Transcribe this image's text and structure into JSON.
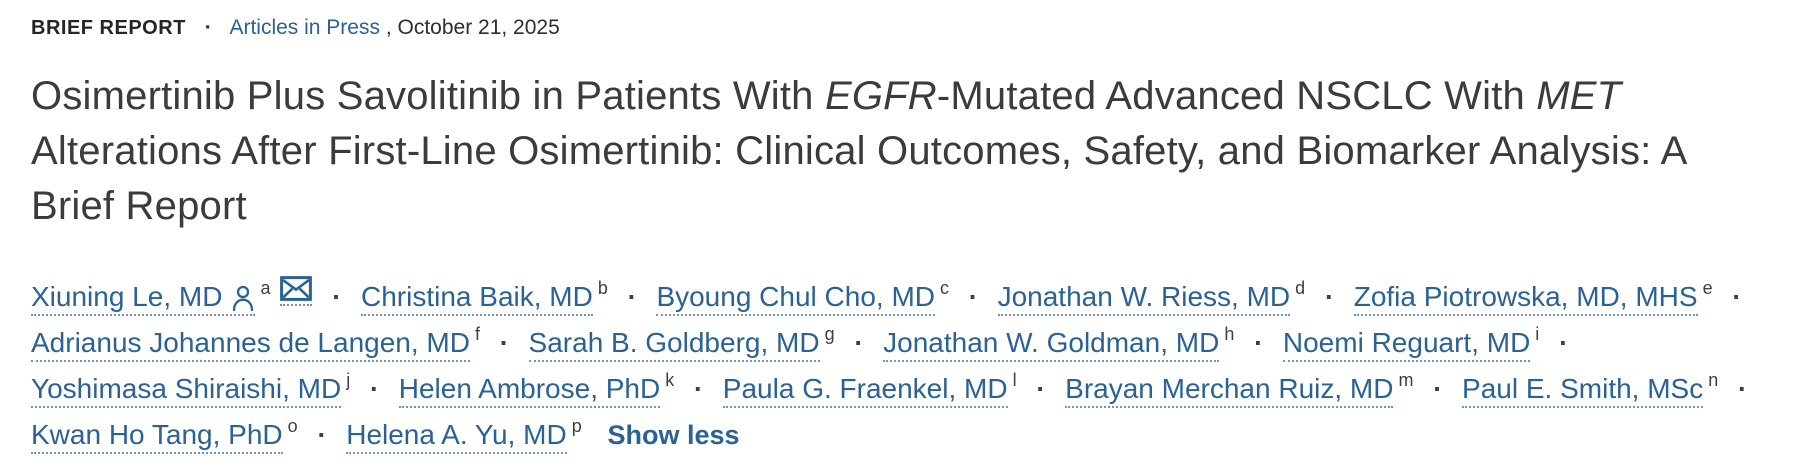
{
  "eyebrow": {
    "category": "BRIEF REPORT",
    "separator": "·",
    "link": "Articles in Press",
    "date_suffix": ", October 21, 2025"
  },
  "title": {
    "segments": [
      {
        "text": "Osimertinib Plus Savolitinib in Patients With ",
        "italic": false
      },
      {
        "text": "EGFR",
        "italic": true
      },
      {
        "text": "-Mutated Advanced NSCLC With ",
        "italic": false
      },
      {
        "text": "MET",
        "italic": true
      },
      {
        "text": " Alterations After First-Line Osimertinib: Clinical Outcomes, Safety, and Biomarker Analysis: A Brief Report",
        "italic": false
      }
    ]
  },
  "authors": {
    "separator": "·",
    "show_less_label": "Show less",
    "list": [
      {
        "name": "Xiuning Le, MD",
        "sup": "a",
        "person_icon": true,
        "email_icon": true
      },
      {
        "name": "Christina Baik, MD",
        "sup": "b"
      },
      {
        "name": "Byoung Chul Cho, MD",
        "sup": "c"
      },
      {
        "name": "Jonathan W. Riess, MD",
        "sup": "d"
      },
      {
        "name": "Zofia Piotrowska, MD, MHS",
        "sup": "e"
      },
      {
        "name": "Adrianus Johannes de Langen, MD",
        "sup": "f"
      },
      {
        "name": "Sarah B. Goldberg, MD",
        "sup": "g"
      },
      {
        "name": "Jonathan W. Goldman, MD",
        "sup": "h"
      },
      {
        "name": "Noemi Reguart, MD",
        "sup": "i"
      },
      {
        "name": "Yoshimasa Shiraishi, MD",
        "sup": "j"
      },
      {
        "name": "Helen Ambrose, PhD",
        "sup": "k"
      },
      {
        "name": "Paula G. Fraenkel, MD",
        "sup": "l"
      },
      {
        "name": "Brayan Merchan Ruiz, MD",
        "sup": "m"
      },
      {
        "name": "Paul E. Smith, MSc",
        "sup": "n"
      },
      {
        "name": "Kwan Ho Tang, PhD",
        "sup": "o"
      },
      {
        "name": "Helena A. Yu, MD",
        "sup": "p"
      }
    ]
  },
  "icons": {
    "person": "person-icon",
    "email": "email-icon"
  },
  "colors": {
    "link_blue": "#2b6294",
    "title_gray": "#3b3b3b",
    "body_dark": "#3f3f3f",
    "dotted_underline": "#6e95ba"
  }
}
